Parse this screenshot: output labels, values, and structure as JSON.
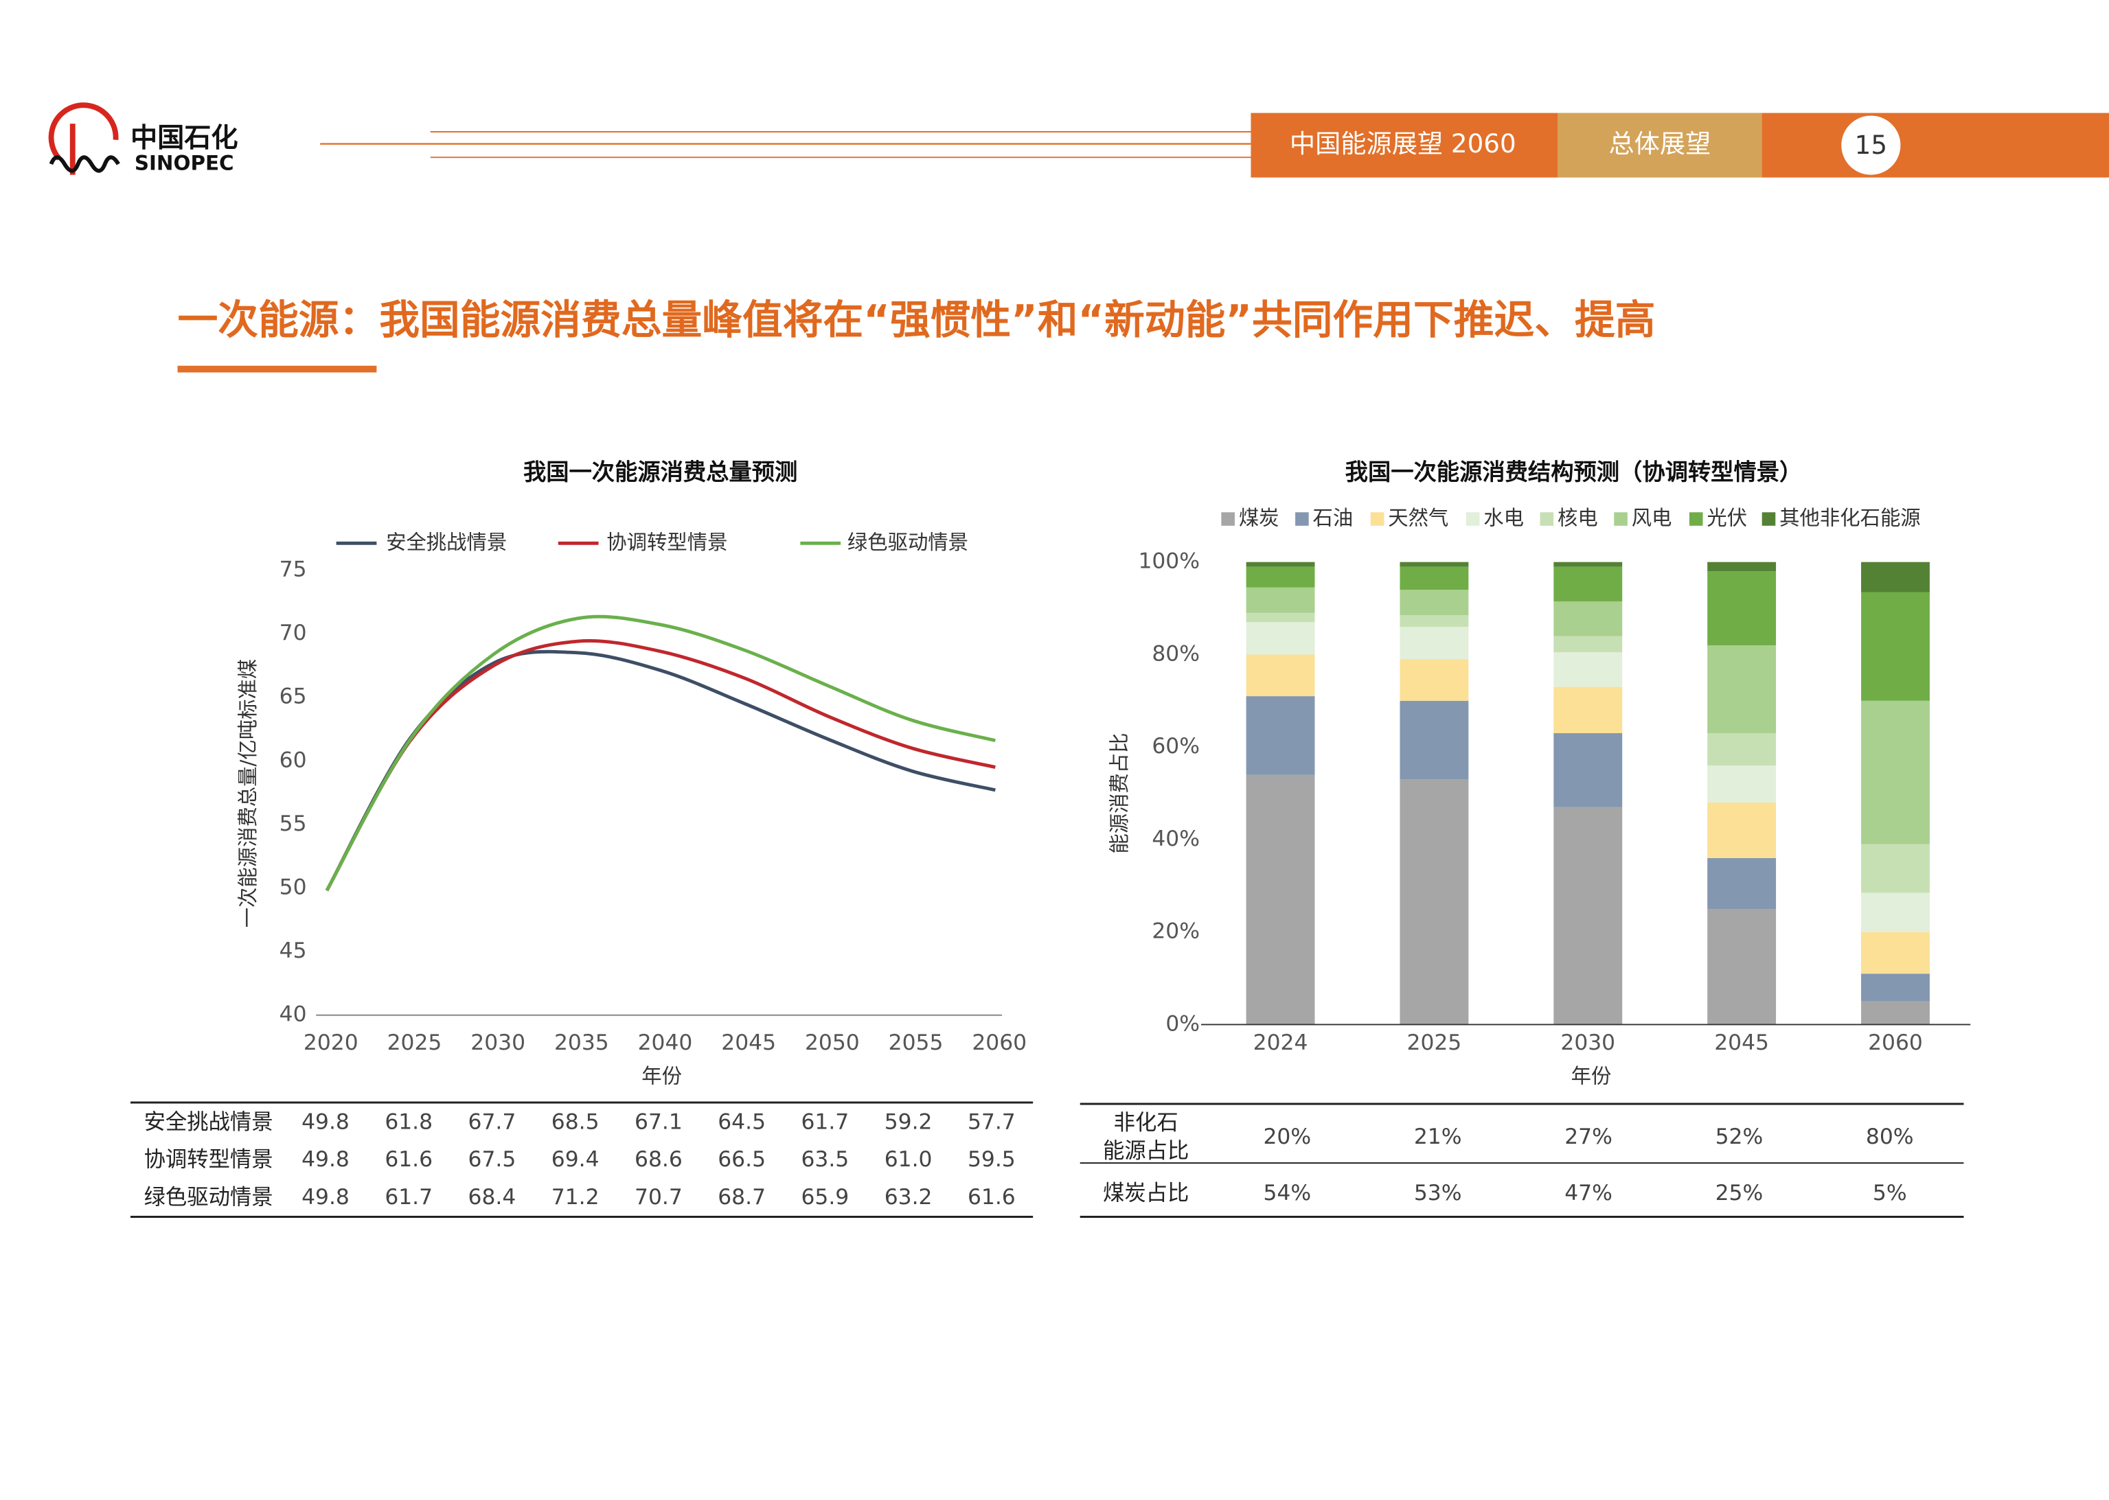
{
  "header": {
    "brand": "中国石化",
    "brand_en": "SINOPEC",
    "report": "中国能源展望 2060",
    "section": "总体展望",
    "page": "15"
  },
  "headline": "一次能源：我国能源消费总量峰值将在“强惯性”和“新动能”共同作用下推迟、提高",
  "chart_data": [
    {
      "type": "line",
      "title": "我国一次能源消费总量预测",
      "x_label": "年份",
      "y_label": "一次能源消费总量/亿吨标准煤",
      "x": [
        2020,
        2025,
        2030,
        2035,
        2040,
        2045,
        2050,
        2055,
        2060
      ],
      "xlim": [
        2020,
        2060
      ],
      "xticks": [
        2020,
        2025,
        2030,
        2035,
        2040,
        2045,
        2050,
        2055,
        2060
      ],
      "ylim": [
        40,
        75
      ],
      "yticks": [
        40,
        45,
        50,
        55,
        60,
        65,
        70,
        75
      ],
      "legend": "top",
      "series": [
        {
          "name": "安全挑战情景",
          "color": "#3e4e66",
          "values": [
            49.8,
            61.8,
            67.7,
            68.5,
            67.1,
            64.5,
            61.7,
            59.2,
            57.7
          ]
        },
        {
          "name": "协调转型情景",
          "color": "#c0272d",
          "values": [
            49.8,
            61.6,
            67.5,
            69.4,
            68.6,
            66.5,
            63.5,
            61.0,
            59.5
          ]
        },
        {
          "name": "绿色驱动情景",
          "color": "#6ab04c",
          "values": [
            49.8,
            61.7,
            68.4,
            71.2,
            70.7,
            68.7,
            65.9,
            63.2,
            61.6
          ]
        }
      ]
    },
    {
      "type": "stacked_bar",
      "title": "我国一次能源消费结构预测（协调转型情景）",
      "x_label": "年份",
      "y_label": "能源消费占比",
      "categories": [
        "2024",
        "2025",
        "2030",
        "2045",
        "2060"
      ],
      "ylim": [
        0,
        100
      ],
      "yticks": [
        {
          "value": 0,
          "label": "0%"
        },
        {
          "value": 20,
          "label": "20%"
        },
        {
          "value": 40,
          "label": "40%"
        },
        {
          "value": 60,
          "label": "60%"
        },
        {
          "value": 80,
          "label": "80%"
        },
        {
          "value": 100,
          "label": "100%"
        }
      ],
      "legend": "top",
      "series": [
        {
          "name": "煤炭",
          "color": "#a6a6a6",
          "values": [
            54,
            53,
            47,
            25,
            5
          ]
        },
        {
          "name": "石油",
          "color": "#8497b0",
          "values": [
            17,
            17,
            16,
            11,
            6
          ]
        },
        {
          "name": "天然气",
          "color": "#fbe096",
          "values": [
            9,
            9,
            10,
            12,
            9
          ]
        },
        {
          "name": "水电",
          "color": "#e2efda",
          "values": [
            7,
            7,
            7.5,
            8,
            8.5
          ]
        },
        {
          "name": "核电",
          "color": "#c6e0b4",
          "values": [
            2,
            2.5,
            3.5,
            7,
            10.5
          ]
        },
        {
          "name": "风电",
          "color": "#a9d08e",
          "values": [
            5.5,
            5.5,
            7.5,
            19,
            31
          ]
        },
        {
          "name": "光伏",
          "color": "#70ad47",
          "values": [
            4.5,
            5,
            7.5,
            16,
            23.5
          ]
        },
        {
          "name": "其他非化石能源",
          "color": "#548235",
          "values": [
            1,
            1,
            1,
            2,
            6.5
          ]
        }
      ]
    }
  ],
  "tables": [
    {
      "rows": [
        {
          "label": [
            "安全挑战情景"
          ],
          "cells": [
            "49.8",
            "61.8",
            "67.7",
            "68.5",
            "67.1",
            "64.5",
            "61.7",
            "59.2",
            "57.7"
          ]
        },
        {
          "label": [
            "协调转型情景"
          ],
          "cells": [
            "49.8",
            "61.6",
            "67.5",
            "69.4",
            "68.6",
            "66.5",
            "63.5",
            "61.0",
            "59.5"
          ]
        },
        {
          "label": [
            "绿色驱动情景"
          ],
          "cells": [
            "49.8",
            "61.7",
            "68.4",
            "71.2",
            "70.7",
            "68.7",
            "65.9",
            "63.2",
            "61.6"
          ]
        }
      ]
    },
    {
      "rows": [
        {
          "label": [
            "非化石",
            "能源占比"
          ],
          "cells": [
            "20%",
            "21%",
            "27%",
            "52%",
            "80%"
          ]
        },
        {
          "label": [
            "煤炭占比"
          ],
          "cells": [
            "54%",
            "53%",
            "47%",
            "25%",
            "5%"
          ]
        }
      ]
    }
  ]
}
